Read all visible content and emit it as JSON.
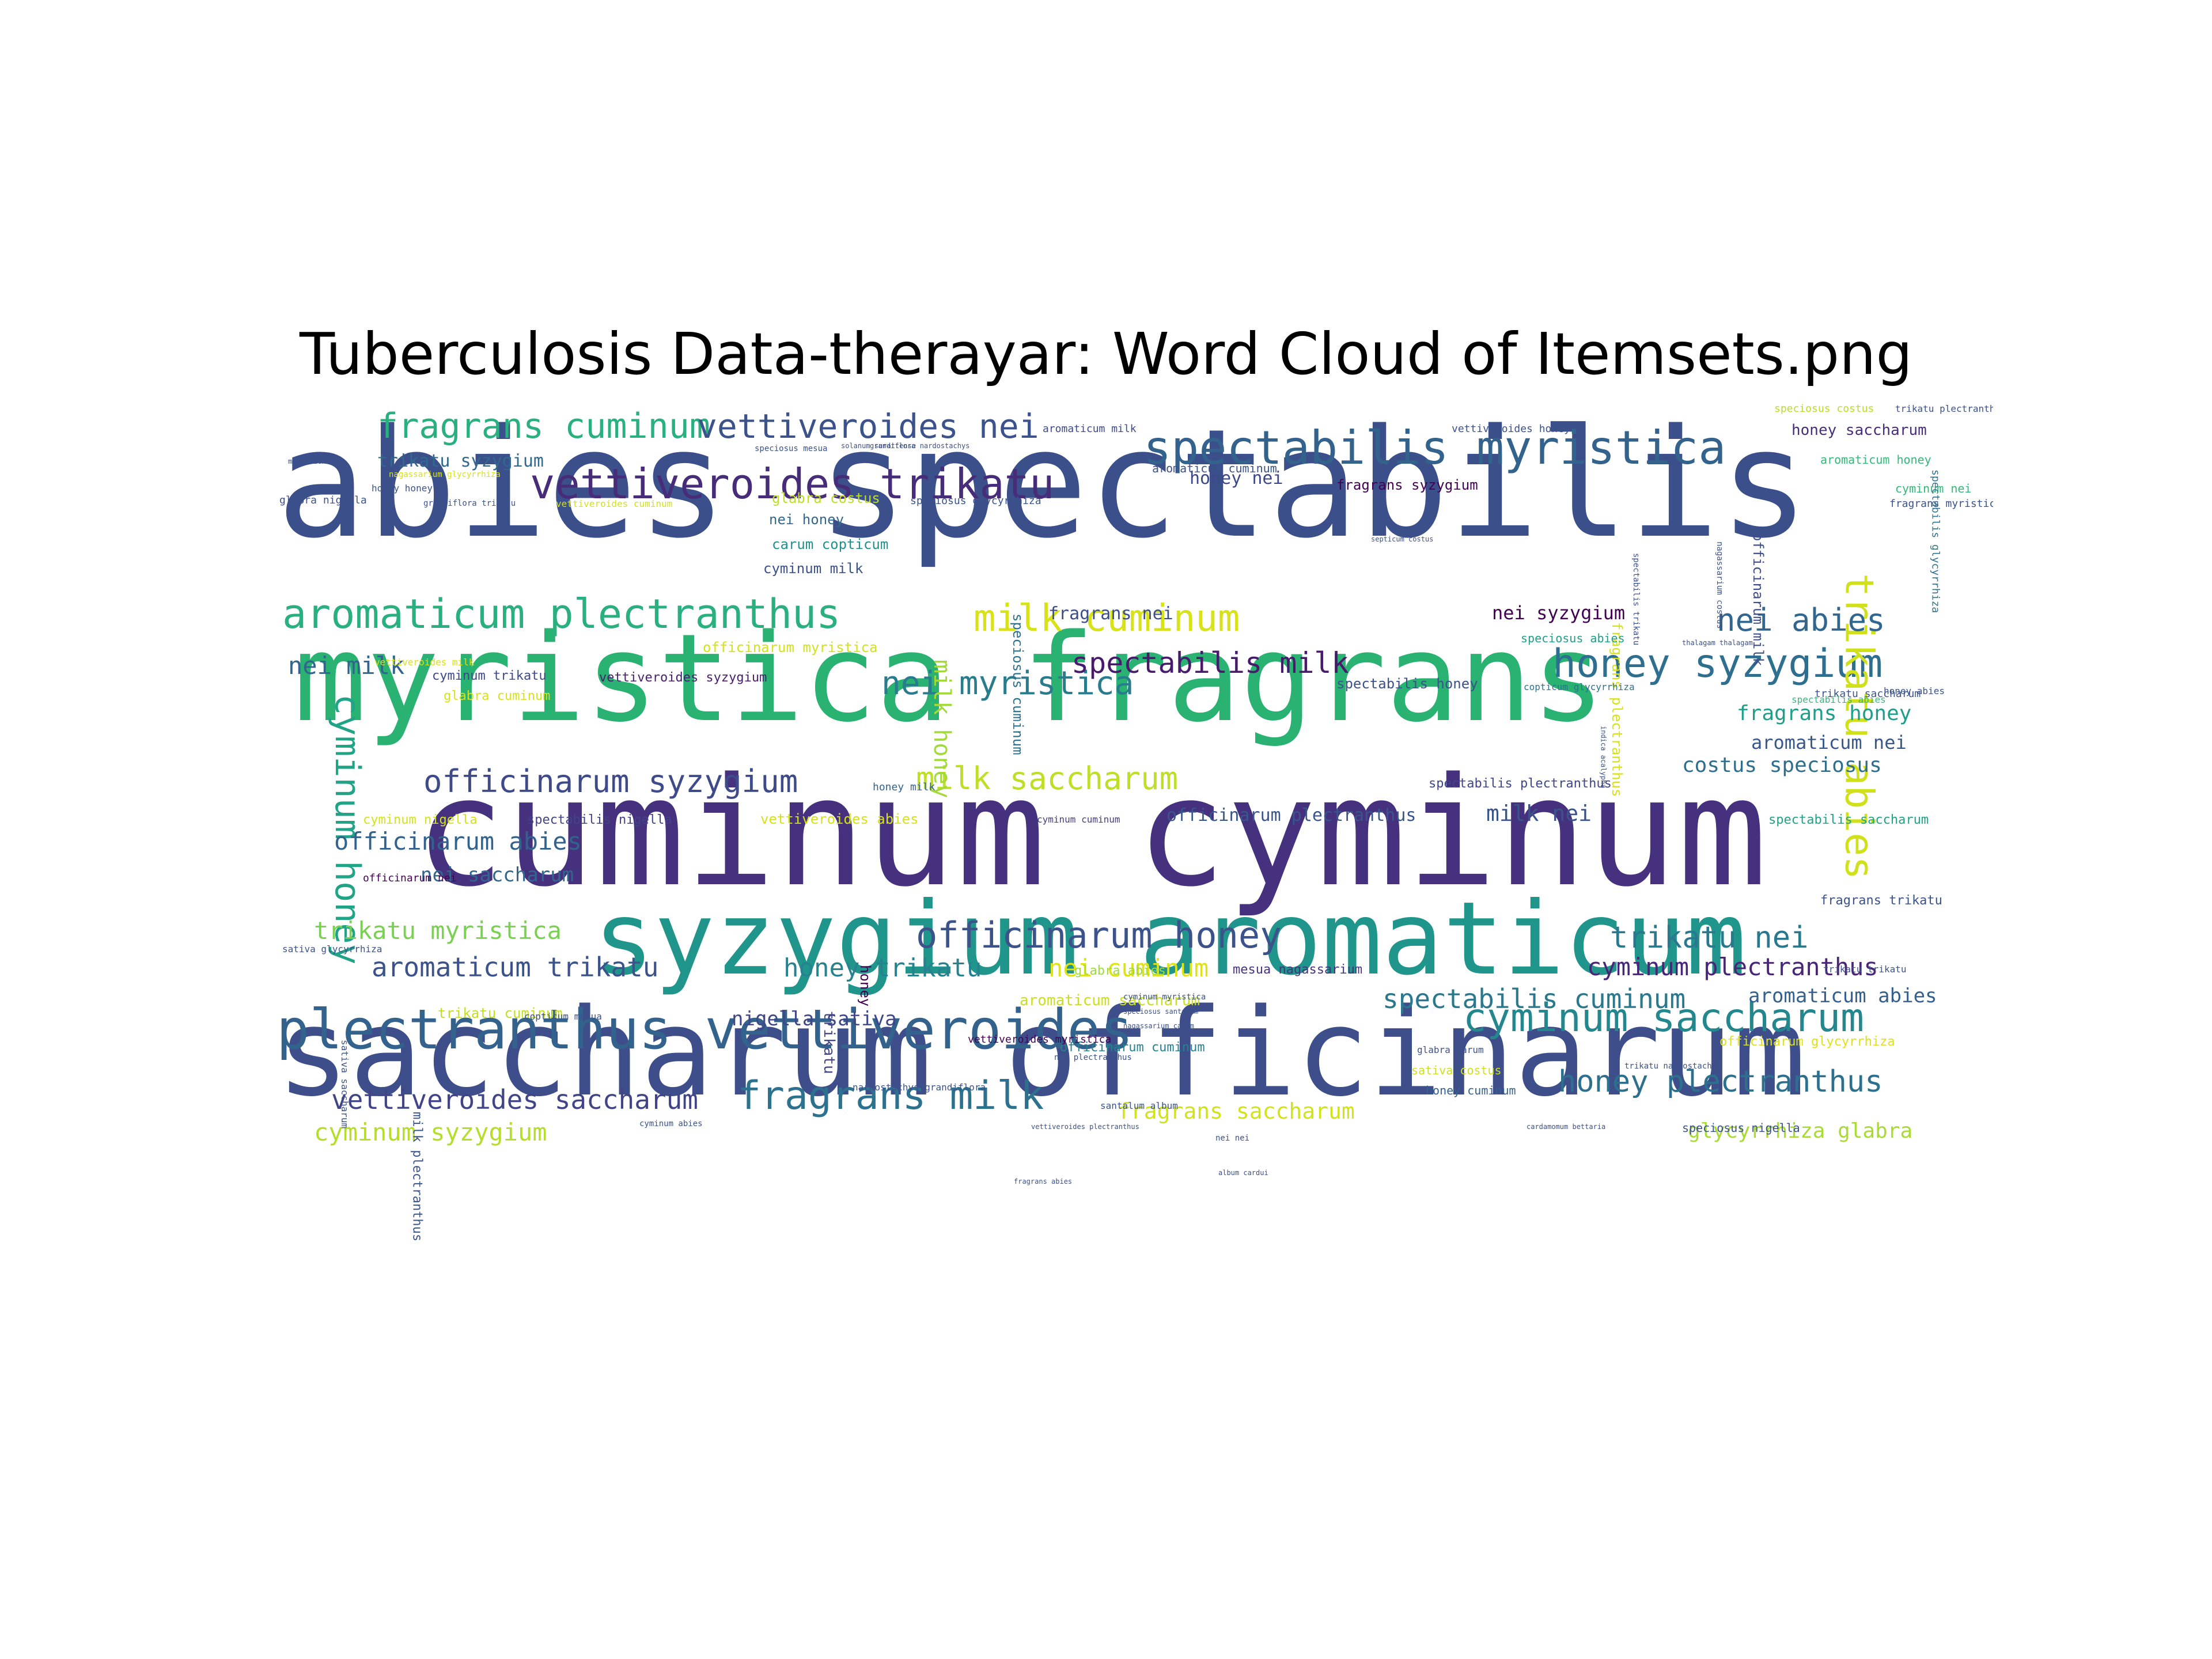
{
  "chart_data": {
    "type": "wordcloud",
    "title": "Tuberculosis Data-therayar: Word Cloud of Itemsets.png",
    "colormap": "viridis",
    "background": "#ffffff",
    "words": [
      {
        "text": "abies spectabilis",
        "weight": 1.0,
        "color": "#3b4f8a"
      },
      {
        "text": "cuminum cyminum",
        "weight": 0.97,
        "color": "#46317e"
      },
      {
        "text": "saccharum officinarum",
        "weight": 0.9,
        "color": "#3d4e8a"
      },
      {
        "text": "myristica fragrans",
        "weight": 0.88,
        "color": "#29b272"
      },
      {
        "text": "syzygium aromaticum",
        "weight": 0.72,
        "color": "#1f958b"
      },
      {
        "text": "plectranthus vettiveroides",
        "weight": 0.42,
        "color": "#33628d"
      },
      {
        "text": "spectabilis myristica",
        "weight": 0.38,
        "color": "#33628d"
      },
      {
        "text": "vettiveroides trikatu",
        "weight": 0.36,
        "color": "#472c7a"
      },
      {
        "text": "aromaticum plectranthus",
        "weight": 0.33,
        "color": "#2ab07f"
      },
      {
        "text": "honey syzygium",
        "weight": 0.31,
        "color": "#2e6e8e"
      },
      {
        "text": "cyminum saccharum",
        "weight": 0.3,
        "color": "#24878e"
      },
      {
        "text": "trikatu abies",
        "weight": 0.3,
        "color": "#d0e11c"
      },
      {
        "text": "fragrans milk",
        "weight": 0.29,
        "color": "#2c718e"
      },
      {
        "text": "milk cuminum",
        "weight": 0.28,
        "color": "#d8e219"
      },
      {
        "text": "officinarum honey",
        "weight": 0.27,
        "color": "#3b528b"
      },
      {
        "text": "cyminum honey",
        "weight": 0.26,
        "color": "#20a386"
      },
      {
        "text": "fragrans cuminum",
        "weight": 0.26,
        "color": "#2ab07f"
      },
      {
        "text": "vettiveroides nei",
        "weight": 0.26,
        "color": "#3b528b"
      },
      {
        "text": "nei myristica",
        "weight": 0.25,
        "color": "#287c8e"
      },
      {
        "text": "milk saccharum",
        "weight": 0.24,
        "color": "#bddf26"
      },
      {
        "text": "officinarum syzygium",
        "weight": 0.24,
        "color": "#3e4a89"
      },
      {
        "text": "nei abies",
        "weight": 0.24,
        "color": "#31668e"
      },
      {
        "text": "spectabilis milk",
        "weight": 0.23,
        "color": "#481a6c"
      },
      {
        "text": "trikatu nei",
        "weight": 0.23,
        "color": "#2a788e"
      },
      {
        "text": "honey plectranthus",
        "weight": 0.23,
        "color": "#2d708e"
      },
      {
        "text": "spectabilis cuminum",
        "weight": 0.22,
        "color": "#2a788e"
      },
      {
        "text": "vettiveroides saccharum",
        "weight": 0.21,
        "color": "#414487"
      },
      {
        "text": "aromaticum trikatu",
        "weight": 0.21,
        "color": "#3b528b"
      },
      {
        "text": "honey trikatu",
        "weight": 0.2,
        "color": "#26828e"
      },
      {
        "text": "nei cuminum",
        "weight": 0.2,
        "color": "#dde318"
      },
      {
        "text": "cyminum plectranthus",
        "weight": 0.2,
        "color": "#482677"
      },
      {
        "text": "trikatu myristica",
        "weight": 0.2,
        "color": "#7ad151"
      },
      {
        "text": "officinarum abies",
        "weight": 0.2,
        "color": "#33628d"
      },
      {
        "text": "cyminum syzygium",
        "weight": 0.19,
        "color": "#b5de2b"
      },
      {
        "text": "fragrans saccharum",
        "weight": 0.17,
        "color": "#d2e21b"
      },
      {
        "text": "glycyrrhiza glabra",
        "weight": 0.17,
        "color": "#a8db34"
      },
      {
        "text": "costus speciosus",
        "weight": 0.17,
        "color": "#2e6f8e"
      },
      {
        "text": "fragrans honey",
        "weight": 0.17,
        "color": "#1f9e89"
      },
      {
        "text": "milk honey",
        "weight": 0.17,
        "color": "#a2da37"
      },
      {
        "text": "nei milk",
        "weight": 0.17,
        "color": "#32658e"
      },
      {
        "text": "milk nei",
        "weight": 0.16,
        "color": "#3b528b"
      },
      {
        "text": "aromaticum abies",
        "weight": 0.16,
        "color": "#35608d"
      },
      {
        "text": "nei saccharum",
        "weight": 0.15,
        "color": "#31678e"
      },
      {
        "text": "nigella sativa",
        "weight": 0.15,
        "color": "#3f4788"
      },
      {
        "text": "aromaticum nei",
        "weight": 0.14,
        "color": "#38588c"
      },
      {
        "text": "fragrans nei",
        "weight": 0.14,
        "color": "#3c4f8a"
      },
      {
        "text": "nei syzygium",
        "weight": 0.14,
        "color": "#440154"
      },
      {
        "text": "honey nei",
        "weight": 0.14,
        "color": "#3e4989"
      },
      {
        "text": "trikatu syzygium",
        "weight": 0.12,
        "color": "#31688e"
      },
      {
        "text": "officinarum plectranthus",
        "weight": 0.12,
        "color": "#39568c"
      },
      {
        "text": "milk plectranthus",
        "weight": 0.12,
        "color": "#3a548c"
      },
      {
        "text": "trikatu",
        "weight": 0.11,
        "color": "#414487"
      },
      {
        "text": "honey",
        "weight": 0.09,
        "color": "#440154"
      },
      {
        "text": "aromaticum saccharum",
        "weight": 0.1,
        "color": "#c8e020"
      },
      {
        "text": "honey saccharum",
        "weight": 0.1,
        "color": "#472f7d"
      },
      {
        "text": "speciosus cuminum",
        "weight": 0.09,
        "color": "#2c728e"
      },
      {
        "text": "officinarum milk",
        "weight": 0.09,
        "color": "#3d4d8a"
      },
      {
        "text": "fragrans plectranthus",
        "weight": 0.09,
        "color": "#d5e21a"
      },
      {
        "text": "spectabilis honey",
        "weight": 0.09,
        "color": "#3b528b"
      },
      {
        "text": "fragrans syzygium",
        "weight": 0.09,
        "color": "#440154"
      },
      {
        "text": "nei honey",
        "weight": 0.09,
        "color": "#31688e"
      },
      {
        "text": "cyminum milk",
        "weight": 0.09,
        "color": "#3b528b"
      },
      {
        "text": "carum copticum",
        "weight": 0.09,
        "color": "#21918c"
      },
      {
        "text": "officinarum myristica",
        "weight": 0.09,
        "color": "#d2e21b"
      },
      {
        "text": "glabra costus",
        "weight": 0.09,
        "color": "#bddf26"
      },
      {
        "text": "vettiveroides syzygium",
        "weight": 0.08,
        "color": "#481f70"
      },
      {
        "text": "cyminum trikatu",
        "weight": 0.08,
        "color": "#3e4989"
      },
      {
        "text": "glabra cuminum",
        "weight": 0.08,
        "color": "#d8e219"
      },
      {
        "text": "spectabilis plectranthus",
        "weight": 0.08,
        "color": "#3f4788"
      },
      {
        "text": "trikatu cuminum",
        "weight": 0.09,
        "color": "#c2df23"
      },
      {
        "text": "mesua nagassarium",
        "weight": 0.08,
        "color": "#46337f"
      },
      {
        "text": "glabra abies",
        "weight": 0.08,
        "color": "#a0da39"
      },
      {
        "text": "vettiveroides abies",
        "weight": 0.08,
        "color": "#d5e21a"
      },
      {
        "text": "officinarum cuminum",
        "weight": 0.08,
        "color": "#26828e"
      },
      {
        "text": "officinarum glycyrrhiza",
        "weight": 0.08,
        "color": "#dde318"
      },
      {
        "text": "sativa costus",
        "weight": 0.07,
        "color": "#cde11d"
      },
      {
        "text": "honey cuminum",
        "weight": 0.07,
        "color": "#34618d"
      },
      {
        "text": "spectabilis saccharum",
        "weight": 0.07,
        "color": "#20a386"
      },
      {
        "text": "fragrans trikatu",
        "weight": 0.07,
        "color": "#3b528b"
      },
      {
        "text": "honey milk",
        "weight": 0.07,
        "color": "#33638d"
      },
      {
        "text": "cyminum nigella",
        "weight": 0.07,
        "color": "#d2e21b"
      },
      {
        "text": "spectabilis nigella",
        "weight": 0.07,
        "color": "#414487"
      },
      {
        "text": "cyminum cuminum",
        "weight": 0.06,
        "color": "#433e85"
      },
      {
        "text": "vettiveroides cuminum",
        "weight": 0.06,
        "color": "#d2e21b"
      },
      {
        "text": "vettiveroides honey",
        "weight": 0.06,
        "color": "#3b528b"
      },
      {
        "text": "aromaticum milk",
        "weight": 0.06,
        "color": "#3e4a89"
      },
      {
        "text": "speciosus costus",
        "weight": 0.06,
        "color": "#b8de29"
      },
      {
        "text": "trikatu plectranthus",
        "weight": 0.06,
        "color": "#3b528b"
      },
      {
        "text": "aromaticum honey",
        "weight": 0.06,
        "color": "#35b779"
      },
      {
        "text": "aromaticum cuminum",
        "weight": 0.06,
        "color": "#3b528b"
      },
      {
        "text": "cyminum nei",
        "weight": 0.06,
        "color": "#35b779"
      },
      {
        "text": "fragrans myristica",
        "weight": 0.06,
        "color": "#3b528b"
      },
      {
        "text": "spectabilis glycyrrhiza",
        "weight": 0.05,
        "color": "#2c728e"
      },
      {
        "text": "speciosus glycyrrhiza",
        "weight": 0.06,
        "color": "#3b528b"
      },
      {
        "text": "speciosus nigella",
        "weight": 0.06,
        "color": "#3b528b"
      },
      {
        "text": "speciosus abies",
        "weight": 0.06,
        "color": "#1f9e89"
      },
      {
        "text": "copticum glycyrrhiza",
        "weight": 0.05,
        "color": "#2c728e"
      },
      {
        "text": "trikatu saccharum",
        "weight": 0.05,
        "color": "#3b528b"
      },
      {
        "text": "spectabilis abies",
        "weight": 0.05,
        "color": "#35b779"
      },
      {
        "text": "honey abies",
        "weight": 0.05,
        "color": "#3b528b"
      },
      {
        "text": "nardostachys grandiflora",
        "weight": 0.05,
        "color": "#3b528b"
      },
      {
        "text": "vettiveroides myristica",
        "weight": 0.06,
        "color": "#440154"
      },
      {
        "text": "glabra carum",
        "weight": 0.06,
        "color": "#3b528b"
      },
      {
        "text": "santalum album",
        "weight": 0.05,
        "color": "#3b528b"
      },
      {
        "text": "grandiflora nardostachys",
        "weight": 0.04,
        "color": "#3b528b"
      },
      {
        "text": "glabra nigella",
        "weight": 0.05,
        "color": "#3b528b"
      },
      {
        "text": "honey honey",
        "weight": 0.04,
        "color": "#3b528b"
      },
      {
        "text": "grandiflora trikatu",
        "weight": 0.04,
        "color": "#3b528b"
      },
      {
        "text": "nagassarium glycyrrhiza",
        "weight": 0.04,
        "color": "#d8e219"
      },
      {
        "text": "sativa glycyrrhiza",
        "weight": 0.05,
        "color": "#3b528b"
      },
      {
        "text": "sativa saccharum",
        "weight": 0.05,
        "color": "#3b528b"
      },
      {
        "text": "officinarum nei",
        "weight": 0.05,
        "color": "#440154"
      },
      {
        "text": "copticum mesua",
        "weight": 0.04,
        "color": "#3b528b"
      },
      {
        "text": "cyminum abies",
        "weight": 0.04,
        "color": "#3b528b"
      },
      {
        "text": "cyminum myristica",
        "weight": 0.04,
        "color": "#3b528b"
      },
      {
        "text": "speciosus santalum",
        "weight": 0.04,
        "color": "#3b528b"
      },
      {
        "text": "nagassarium carum",
        "weight": 0.04,
        "color": "#3b528b"
      },
      {
        "text": "speciosus mesua",
        "weight": 0.04,
        "color": "#3b528b"
      },
      {
        "text": "vettiveroides milk",
        "weight": 0.05,
        "color": "#d8e219"
      },
      {
        "text": "nei plectranthus",
        "weight": 0.05,
        "color": "#3b528b"
      },
      {
        "text": "fragrans abies",
        "weight": 0.04,
        "color": "#3b528b"
      },
      {
        "text": "nei nei",
        "weight": 0.04,
        "color": "#3b528b"
      },
      {
        "text": "milk milk",
        "weight": 0.04,
        "color": "#3b528b"
      },
      {
        "text": "septicum costus",
        "weight": 0.04,
        "color": "#3b528b"
      },
      {
        "text": "album cardui",
        "weight": 0.04,
        "color": "#3b528b"
      },
      {
        "text": "thalagam thalagam",
        "weight": 0.04,
        "color": "#3b528b"
      },
      {
        "text": "cardamomum bettaria",
        "weight": 0.04,
        "color": "#3b528b"
      },
      {
        "text": "nagassarium costus",
        "weight": 0.04,
        "color": "#3b528b"
      },
      {
        "text": "spectabilis trikatu",
        "weight": 0.04,
        "color": "#3b528b"
      },
      {
        "text": "indica acalypha",
        "weight": 0.04,
        "color": "#3b528b"
      },
      {
        "text": "trikatu trikatu",
        "weight": 0.04,
        "color": "#3b528b"
      },
      {
        "text": "trikatu nardostachys",
        "weight": 0.04,
        "color": "#3b528b"
      },
      {
        "text": "solanum surattense",
        "weight": 0.04,
        "color": "#3b528b"
      },
      {
        "text": "vettiveroides plectranthus",
        "weight": 0.04,
        "color": "#3b528b"
      }
    ]
  }
}
